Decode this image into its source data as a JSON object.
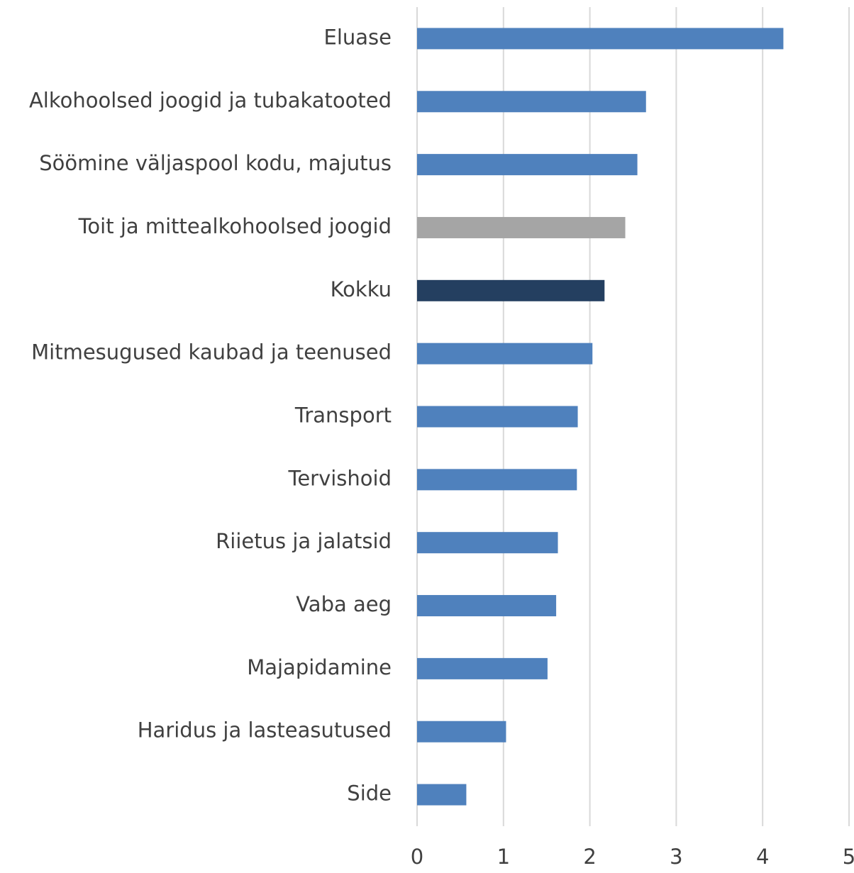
{
  "chart_data": {
    "type": "bar",
    "orientation": "horizontal",
    "categories": [
      "Eluase",
      "Alkohoolsed joogid ja tubakatooted",
      "Söömine väljaspool kodu, majutus",
      "Toit ja mittealkohoolsed joogid",
      "Kokku",
      "Mitmesugused kaubad ja teenused",
      "Transport",
      "Tervishoid",
      "Riietus ja jalatsid",
      "Vaba aeg",
      "Majapidamine",
      "Haridus ja lasteasutused",
      "Side"
    ],
    "values": [
      4.24,
      2.65,
      2.55,
      2.41,
      2.17,
      2.03,
      1.86,
      1.85,
      1.63,
      1.61,
      1.51,
      1.03,
      0.57
    ],
    "colors": [
      "#4f81bd",
      "#4f81bd",
      "#4f81bd",
      "#a5a5a5",
      "#243f60",
      "#4f81bd",
      "#4f81bd",
      "#4f81bd",
      "#4f81bd",
      "#4f81bd",
      "#4f81bd",
      "#4f81bd",
      "#4f81bd"
    ],
    "xlim": [
      0,
      5
    ],
    "xticks": [
      0,
      1,
      2,
      3,
      4,
      5
    ],
    "grid": true
  }
}
